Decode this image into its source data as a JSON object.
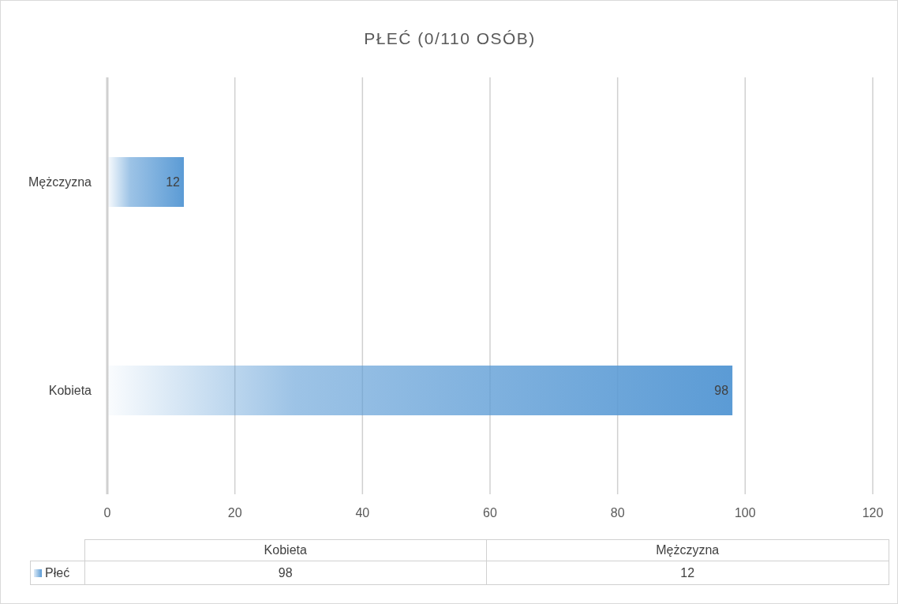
{
  "chart_data": {
    "type": "bar",
    "orientation": "horizontal",
    "title": "PŁEĆ (0/110 OSÓB)",
    "categories": [
      "Mężczyzna",
      "Kobieta"
    ],
    "series": [
      {
        "name": "Płeć",
        "color": "#5b9bd5",
        "values": [
          12,
          98
        ]
      }
    ],
    "annotations": [
      "98",
      "12"
    ],
    "xlim": [
      0,
      120
    ],
    "xticks": [
      0,
      20,
      40,
      60,
      80,
      100,
      120
    ],
    "grid": "x",
    "data_labels": true,
    "legend": "bottom"
  }
}
